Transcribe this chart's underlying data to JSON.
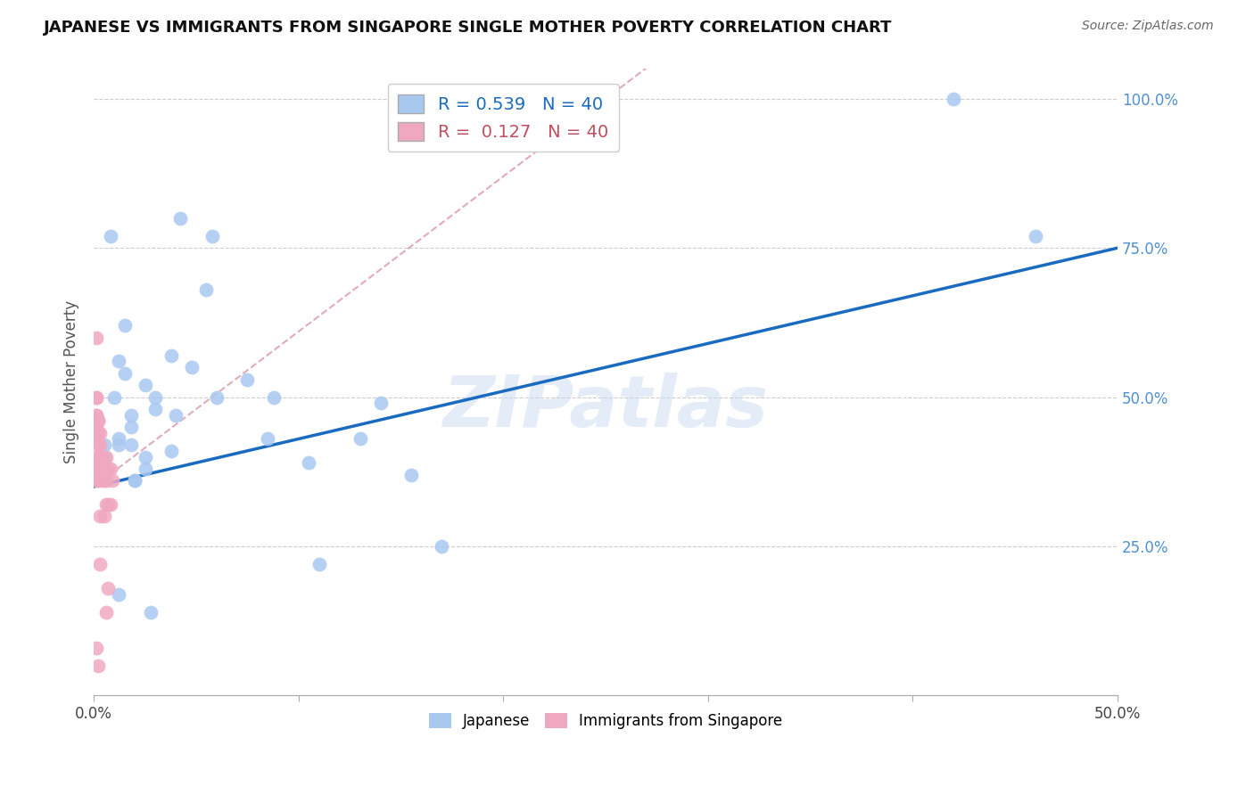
{
  "title": "JAPANESE VS IMMIGRANTS FROM SINGAPORE SINGLE MOTHER POVERTY CORRELATION CHART",
  "source": "Source: ZipAtlas.com",
  "ylabel": "Single Mother Poverty",
  "xlim": [
    0.0,
    0.5
  ],
  "ylim": [
    0.0,
    1.05
  ],
  "japanese_color": "#a8c8f0",
  "singapore_color": "#f0a8c0",
  "japanese_R": 0.539,
  "japanese_N": 40,
  "singapore_R": 0.127,
  "singapore_N": 40,
  "regression_blue_color": "#1a6bbf",
  "regression_pink_color": "#d08090",
  "watermark": "ZIPatlas",
  "japanese_x": [
    0.005,
    0.01,
    0.012,
    0.015,
    0.015,
    0.018,
    0.005,
    0.012,
    0.018,
    0.025,
    0.018,
    0.025,
    0.03,
    0.038,
    0.03,
    0.038,
    0.04,
    0.048,
    0.06,
    0.055,
    0.075,
    0.085,
    0.088,
    0.105,
    0.11,
    0.13,
    0.14,
    0.155,
    0.17,
    0.008,
    0.012,
    0.012,
    0.02,
    0.025,
    0.02,
    0.028,
    0.042,
    0.058,
    0.42,
    0.46
  ],
  "japanese_y": [
    0.42,
    0.5,
    0.56,
    0.62,
    0.54,
    0.42,
    0.4,
    0.43,
    0.45,
    0.4,
    0.47,
    0.52,
    0.5,
    0.57,
    0.48,
    0.41,
    0.47,
    0.55,
    0.5,
    0.68,
    0.53,
    0.43,
    0.5,
    0.39,
    0.22,
    0.43,
    0.49,
    0.37,
    0.25,
    0.77,
    0.42,
    0.17,
    0.36,
    0.38,
    0.36,
    0.14,
    0.8,
    0.77,
    1.0,
    0.77
  ],
  "singapore_x": [
    0.001,
    0.001,
    0.001,
    0.001,
    0.001,
    0.001,
    0.001,
    0.001,
    0.001,
    0.001,
    0.002,
    0.002,
    0.002,
    0.002,
    0.002,
    0.002,
    0.002,
    0.003,
    0.003,
    0.003,
    0.003,
    0.003,
    0.003,
    0.004,
    0.004,
    0.005,
    0.005,
    0.005,
    0.006,
    0.006,
    0.006,
    0.006,
    0.007,
    0.007,
    0.007,
    0.008,
    0.008,
    0.009,
    0.001,
    0.002
  ],
  "singapore_y": [
    0.6,
    0.5,
    0.5,
    0.47,
    0.47,
    0.45,
    0.43,
    0.4,
    0.38,
    0.36,
    0.46,
    0.46,
    0.44,
    0.42,
    0.4,
    0.38,
    0.36,
    0.44,
    0.42,
    0.4,
    0.38,
    0.3,
    0.22,
    0.4,
    0.36,
    0.38,
    0.36,
    0.3,
    0.4,
    0.36,
    0.32,
    0.14,
    0.38,
    0.32,
    0.18,
    0.38,
    0.32,
    0.36,
    0.08,
    0.05
  ]
}
